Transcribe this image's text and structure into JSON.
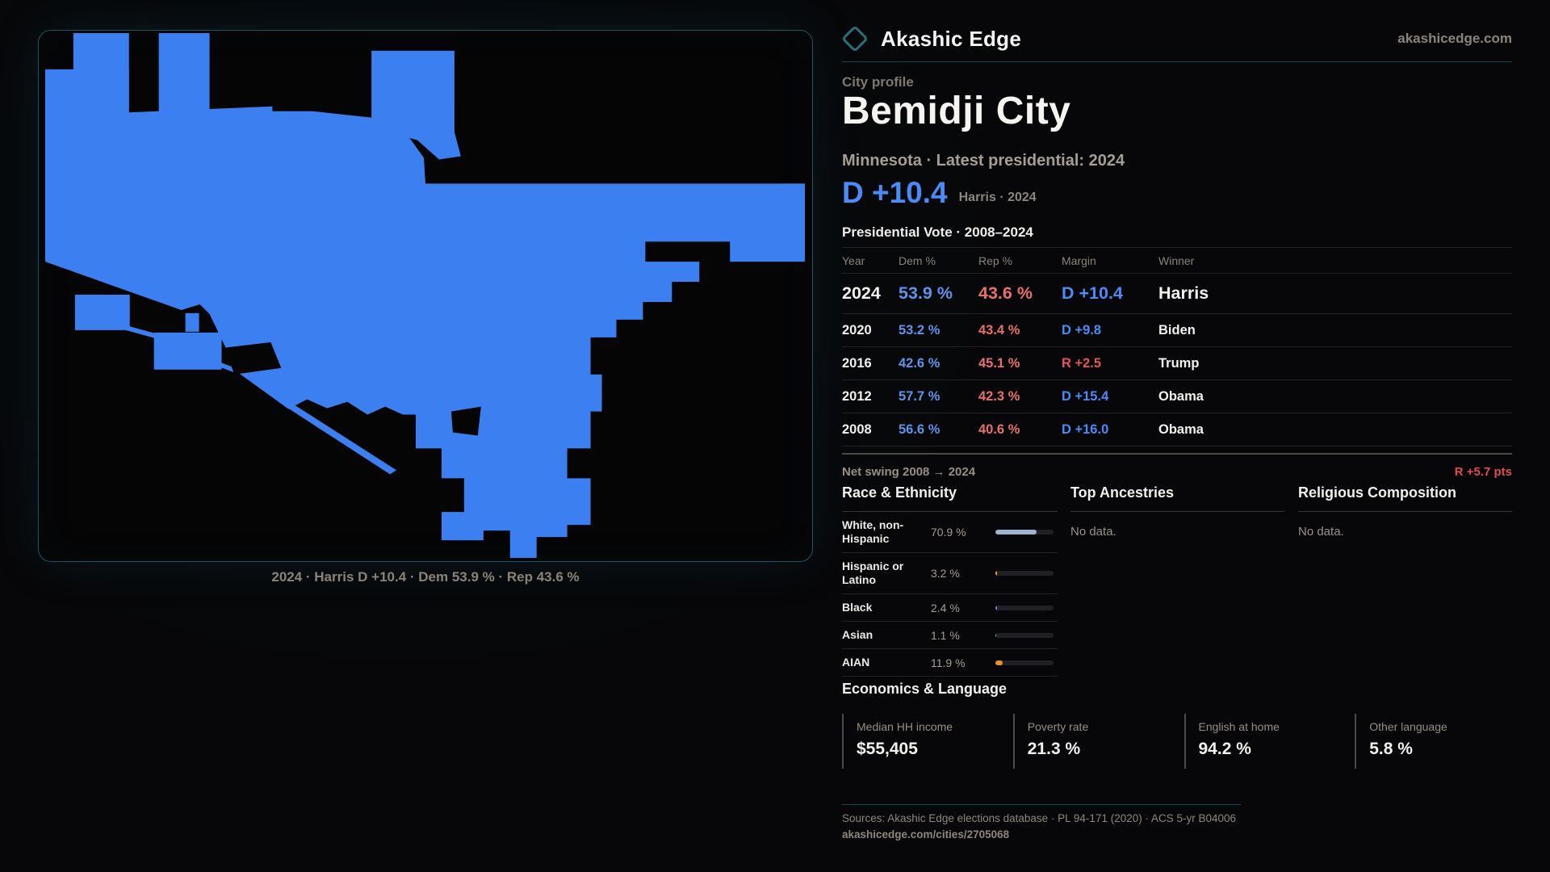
{
  "brand": {
    "name": "Akashic Edge",
    "domain": "akashicedge.com"
  },
  "profile": {
    "kicker": "City profile",
    "city": "Bemidji City",
    "subtitle": "Minnesota · Latest presidential: 2024",
    "headline_margin": "D +10.4",
    "headline_context": "Harris · 2024"
  },
  "map": {
    "caption": "2024 · Harris D +10.4 · Dem 53.9 % · Rep 43.6 %",
    "fill_color": "#3b7ff0"
  },
  "table": {
    "title": "Presidential Vote · 2008–2024",
    "columns": [
      "Year",
      "Dem %",
      "Rep %",
      "Margin",
      "Winner"
    ],
    "rows": [
      {
        "year": "2024",
        "dem": "53.9 %",
        "rep": "43.6 %",
        "margin": "D +10.4",
        "margin_party": "D",
        "winner": "Harris"
      },
      {
        "year": "2020",
        "dem": "53.2 %",
        "rep": "43.4 %",
        "margin": "D +9.8",
        "margin_party": "D",
        "winner": "Biden"
      },
      {
        "year": "2016",
        "dem": "42.6 %",
        "rep": "45.1 %",
        "margin": "R +2.5",
        "margin_party": "R",
        "winner": "Trump"
      },
      {
        "year": "2012",
        "dem": "57.7 %",
        "rep": "42.3 %",
        "margin": "D +15.4",
        "margin_party": "D",
        "winner": "Obama"
      },
      {
        "year": "2008",
        "dem": "56.6 %",
        "rep": "40.6 %",
        "margin": "D +16.0",
        "margin_party": "D",
        "winner": "Obama"
      }
    ],
    "net_swing_label": "Net swing 2008 → 2024",
    "net_swing_value": "R +5.7 pts"
  },
  "race": {
    "title": "Race & Ethnicity",
    "rows": [
      {
        "label": "White, non-Hispanic",
        "value": "70.9 %",
        "pct": 70.9,
        "color": "#9fb4d0"
      },
      {
        "label": "Hispanic or Latino",
        "value": "3.2 %",
        "pct": 3.2,
        "color": "#e8a23c"
      },
      {
        "label": "Black",
        "value": "2.4 %",
        "pct": 2.4,
        "color": "#8b74e0"
      },
      {
        "label": "Asian",
        "value": "1.1 %",
        "pct": 1.1,
        "color": "#3ecf8e"
      },
      {
        "label": "AIAN",
        "value": "11.9 %",
        "pct": 11.9,
        "color": "#e8942a"
      }
    ]
  },
  "ancestries": {
    "title": "Top Ancestries",
    "empty": "No data."
  },
  "religion": {
    "title": "Religious Composition",
    "empty": "No data."
  },
  "economics": {
    "title": "Economics & Language",
    "cards": [
      {
        "label": "Median HH income",
        "value": "$55,405"
      },
      {
        "label": "Poverty rate",
        "value": "21.3 %"
      },
      {
        "label": "English at home",
        "value": "94.2 %"
      },
      {
        "label": "Other language",
        "value": "5.8 %"
      }
    ]
  },
  "footer": {
    "sources": "Sources: Akashic Edge elections database · PL 94-171 (2020) · ACS 5-yr B04006",
    "permalink": "akashicedge.com/cities/2705068"
  },
  "colors": {
    "margin_d": "#4a8cf5",
    "margin_r": "#e05555",
    "accent_teal": "#15464f"
  }
}
